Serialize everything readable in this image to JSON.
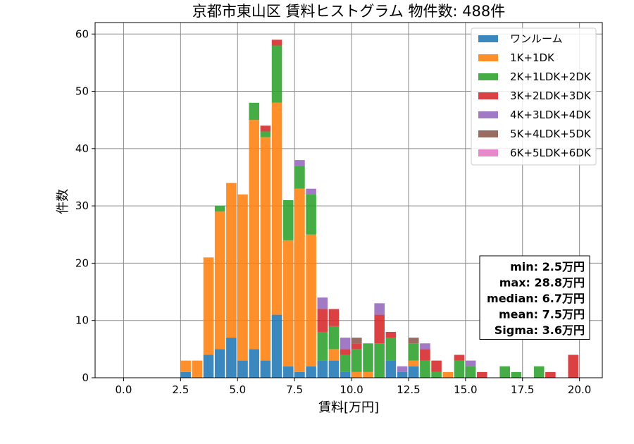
{
  "chart_data": {
    "type": "bar",
    "subtype": "stacked-histogram",
    "title": "京都市東山区 賃料ヒストグラム  物件数: 488件",
    "xlabel": "賃料[万円]",
    "ylabel": "件数",
    "xlim": [
      -1.25,
      21.0
    ],
    "ylim": [
      0,
      62
    ],
    "xticks": [
      "0.0",
      "2.5",
      "5.0",
      "7.5",
      "10.0",
      "12.5",
      "15.0",
      "17.5",
      "20.0"
    ],
    "yticks": [
      "0",
      "10",
      "20",
      "30",
      "40",
      "50",
      "60"
    ],
    "grid": true,
    "legend_position": "top-right",
    "bin_width": 0.5,
    "bins": [
      2.5,
      3.0,
      3.5,
      4.0,
      4.5,
      5.0,
      5.5,
      6.0,
      6.5,
      7.0,
      7.5,
      8.0,
      8.5,
      9.0,
      9.5,
      10.0,
      10.5,
      11.0,
      11.5,
      12.0,
      12.5,
      13.0,
      13.5,
      14.0,
      14.5,
      15.0,
      15.5,
      16.0,
      16.5,
      17.0,
      17.5,
      18.0,
      18.5,
      19.0,
      19.5
    ],
    "series": [
      {
        "name": "ワンルーム",
        "color": "#1f77b4",
        "values": [
          1,
          0,
          4,
          5,
          7,
          3,
          5,
          3,
          11,
          2,
          1,
          2,
          3,
          3,
          1,
          0,
          0,
          0,
          3,
          1,
          2,
          0,
          0,
          0,
          0,
          0,
          0,
          0,
          0,
          0,
          0,
          0,
          0,
          0,
          0
        ]
      },
      {
        "name": "1K+1DK",
        "color": "#ff7f0e",
        "values": [
          2,
          3,
          17,
          24,
          27,
          29,
          40,
          39,
          37,
          22,
          32,
          23,
          0,
          2,
          0,
          1,
          1,
          0,
          0,
          0,
          1,
          0,
          0,
          1,
          0,
          0,
          0,
          0,
          0,
          0,
          0,
          0,
          0,
          0,
          0
        ]
      },
      {
        "name": "2K+1LDK+2DK",
        "color": "#2ca02c",
        "values": [
          0,
          0,
          0,
          1,
          0,
          0,
          3,
          1,
          10,
          7,
          4,
          7,
          5,
          4,
          3,
          4,
          5,
          6,
          4,
          0,
          3,
          3,
          1,
          0,
          3,
          2,
          0,
          0,
          2,
          1,
          0,
          2,
          0,
          0,
          0
        ]
      },
      {
        "name": "3K+2LDK+3DK",
        "color": "#d62728",
        "values": [
          0,
          0,
          0,
          0,
          0,
          0,
          0,
          1,
          1,
          0,
          0,
          0,
          4,
          3,
          1,
          1,
          0,
          5,
          1,
          0,
          0,
          2,
          2,
          0,
          1,
          0,
          1,
          0,
          0,
          0,
          0,
          0,
          1,
          0,
          4
        ]
      },
      {
        "name": "4K+3LDK+4DK",
        "color": "#9467bd",
        "values": [
          0,
          0,
          0,
          0,
          0,
          0,
          0,
          0,
          0,
          0,
          1,
          1,
          2,
          0,
          2,
          0,
          0,
          2,
          0,
          1,
          0,
          1,
          0,
          0,
          0,
          1,
          0,
          0,
          0,
          0,
          0,
          0,
          0,
          0,
          0
        ]
      },
      {
        "name": "5K+4LDK+5DK",
        "color": "#8c564b",
        "values": [
          0,
          0,
          0,
          0,
          0,
          0,
          0,
          0,
          0,
          0,
          0,
          0,
          0,
          0,
          0,
          1,
          0,
          0,
          0,
          0,
          1,
          0,
          0,
          0,
          0,
          0,
          0,
          0,
          0,
          0,
          0,
          0,
          0,
          0,
          0
        ]
      },
      {
        "name": "6K+5LDK+6DK",
        "color": "#e377c2",
        "values": [
          0,
          0,
          0,
          0,
          0,
          0,
          0,
          0,
          0,
          0,
          0,
          0,
          0,
          0,
          0,
          0,
          0,
          0,
          0,
          0,
          0,
          0,
          0,
          0,
          0,
          0,
          0,
          0,
          0,
          0,
          0,
          0,
          0,
          0,
          0
        ]
      }
    ],
    "stats": [
      "min: 2.5万円",
      "max: 28.8万円",
      "median: 6.7万円",
      "mean: 7.5万円",
      "Sigma: 3.6万円"
    ]
  }
}
